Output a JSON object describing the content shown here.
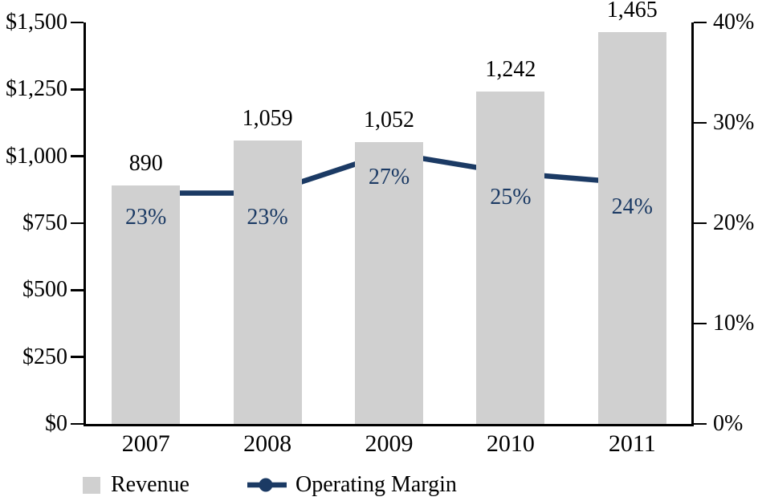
{
  "chart_data": {
    "type": "bar+line",
    "title": "",
    "categories": [
      "2007",
      "2008",
      "2009",
      "2010",
      "2011"
    ],
    "series": [
      {
        "name": "Revenue",
        "type": "bar",
        "axis": "left",
        "values": [
          890,
          1059,
          1052,
          1242,
          1465
        ],
        "labels": [
          "890",
          "1,059",
          "1,052",
          "1,242",
          "1,465"
        ],
        "color": "#d0d0d0"
      },
      {
        "name": "Operating Margin",
        "type": "line",
        "axis": "right",
        "values": [
          23,
          23,
          27,
          25,
          24
        ],
        "labels": [
          "23%",
          "23%",
          "27%",
          "25%",
          "24%"
        ],
        "color": "#1b3a64"
      }
    ],
    "left_axis": {
      "min": 0,
      "max": 1500,
      "tick_values": [
        1500,
        1250,
        1000,
        750,
        500,
        250,
        0
      ],
      "tick_labels": [
        "$1,500",
        "$1,250",
        "$1,000",
        "$750",
        "$500",
        "$250",
        "$0"
      ]
    },
    "right_axis": {
      "min": 0,
      "max": 40,
      "tick_values": [
        40,
        30,
        20,
        10,
        0
      ],
      "tick_labels": [
        "40%",
        "30%",
        "20%",
        "10%",
        "0%"
      ]
    },
    "grid": false,
    "legend_position": "bottom"
  },
  "legend": {
    "items": [
      {
        "label": "Revenue"
      },
      {
        "label": "Operating Margin"
      }
    ]
  },
  "colors": {
    "bar": "#d0d0d0",
    "line": "#1b3a64",
    "axis": "#000000",
    "value_label": "#000000",
    "percent_label": "#1b3a64",
    "background": "#ffffff"
  }
}
